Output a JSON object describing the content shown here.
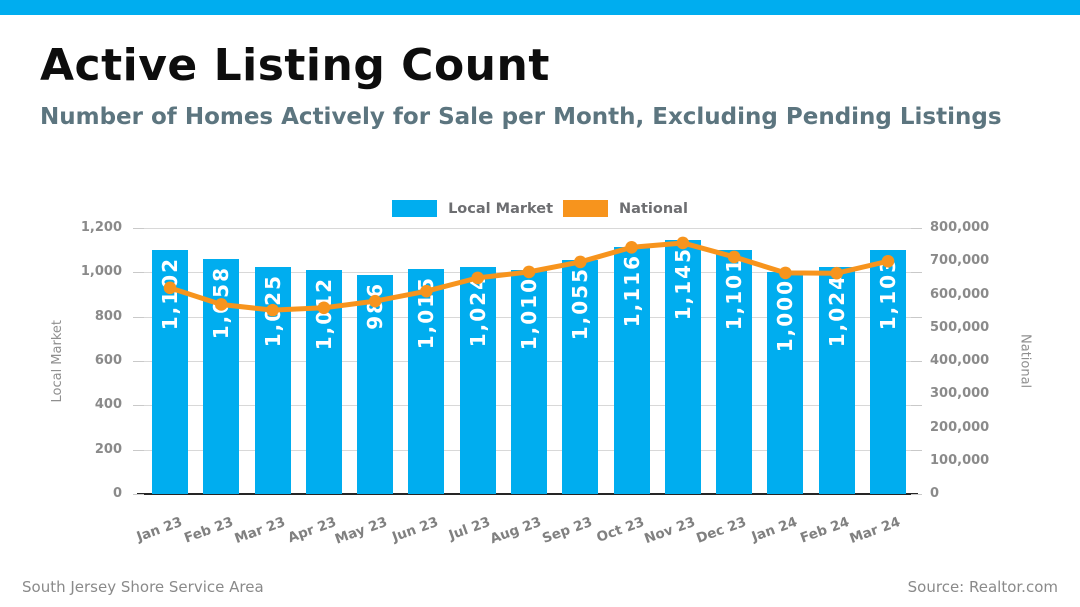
{
  "page": {
    "title": "Active Listing Count",
    "subtitle": "Number of Homes Actively for Sale per Month, Excluding Pending Listings",
    "footer_left": "South Jersey Shore Service Area",
    "footer_right": "Source: Realtor.com"
  },
  "colors": {
    "accent_blue": "#00ADEF",
    "accent_orange": "#F7941D",
    "grid_line": "#D8D8D8",
    "axis_line": "#262626",
    "axis_text": "#8A8A8A",
    "bar_label_text": "#FFFFFF",
    "subtitle_text": "#5C757F",
    "legend_text": "#6D6E71",
    "footer_text": "#8A8A8A"
  },
  "chart_data": {
    "type": "bar",
    "title": "Active Listing Count",
    "subtitle": "Number of Homes Actively for Sale per Month, Excluding Pending Listings",
    "grid": "horizontal",
    "legend_position": "top-center",
    "categories": [
      "Jan 23",
      "Feb 23",
      "Mar 23",
      "Apr 23",
      "May 23",
      "Jun 23",
      "Jul 23",
      "Aug 23",
      "Sep 23",
      "Oct 23",
      "Nov 23",
      "Dec 23",
      "Jan 24",
      "Feb 24",
      "Mar 24"
    ],
    "series": [
      {
        "name": "Local Market",
        "type": "bar",
        "axis": "left",
        "color": "#00ADEF",
        "values": [
          1102,
          1058,
          1025,
          1012,
          986,
          1015,
          1024,
          1010,
          1055,
          1116,
          1145,
          1101,
          1000,
          1024,
          1103
        ],
        "data_labels": [
          "1,102",
          "1,058",
          "1,025",
          "1,012",
          "986",
          "1,015",
          "1,024",
          "1,010",
          "1,055",
          "1,116",
          "1,145",
          "1,101",
          "1,000",
          "1,024",
          "1,103"
        ]
      },
      {
        "name": "National",
        "type": "line",
        "axis": "right",
        "color": "#F7941D",
        "values": [
          620000,
          570000,
          553000,
          560000,
          580000,
          610000,
          650000,
          668000,
          698000,
          742000,
          755000,
          713000,
          665000,
          664000,
          700000
        ]
      }
    ],
    "left_axis": {
      "title": "Local Market",
      "min": 0,
      "max": 1200,
      "step": 200,
      "tick_labels": [
        "0",
        "200",
        "400",
        "600",
        "800",
        "1,000",
        "1,200"
      ]
    },
    "right_axis": {
      "title": "National",
      "min": 0,
      "max": 800000,
      "step": 100000,
      "tick_labels": [
        "0",
        "100,000",
        "200,000",
        "300,000",
        "400,000",
        "500,000",
        "600,000",
        "700,000",
        "800,000"
      ]
    },
    "legend": [
      {
        "label": "Local Market",
        "color": "#00ADEF"
      },
      {
        "label": "National",
        "color": "#F7941D"
      }
    ]
  }
}
